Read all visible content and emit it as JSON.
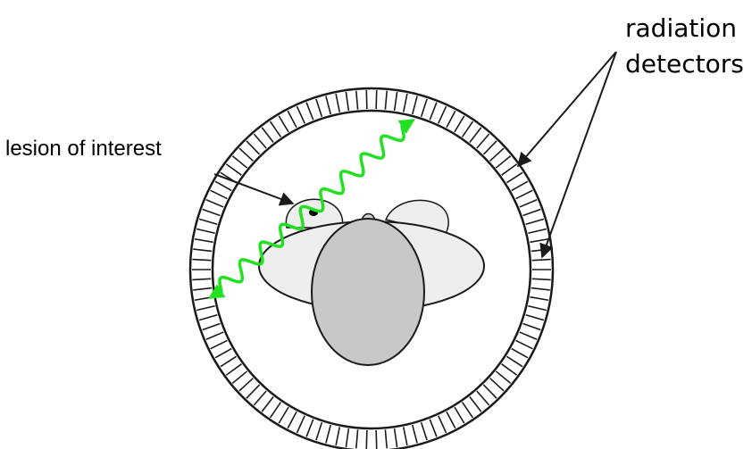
{
  "labels": {
    "lesion": "lesion of interest",
    "radiation": "radiation",
    "detectors": "detectors"
  },
  "colors": {
    "gamma_ray": "#22e022",
    "head": "#c8c8c8",
    "body": "#eeeeee",
    "outline": "#1a1a1a"
  }
}
